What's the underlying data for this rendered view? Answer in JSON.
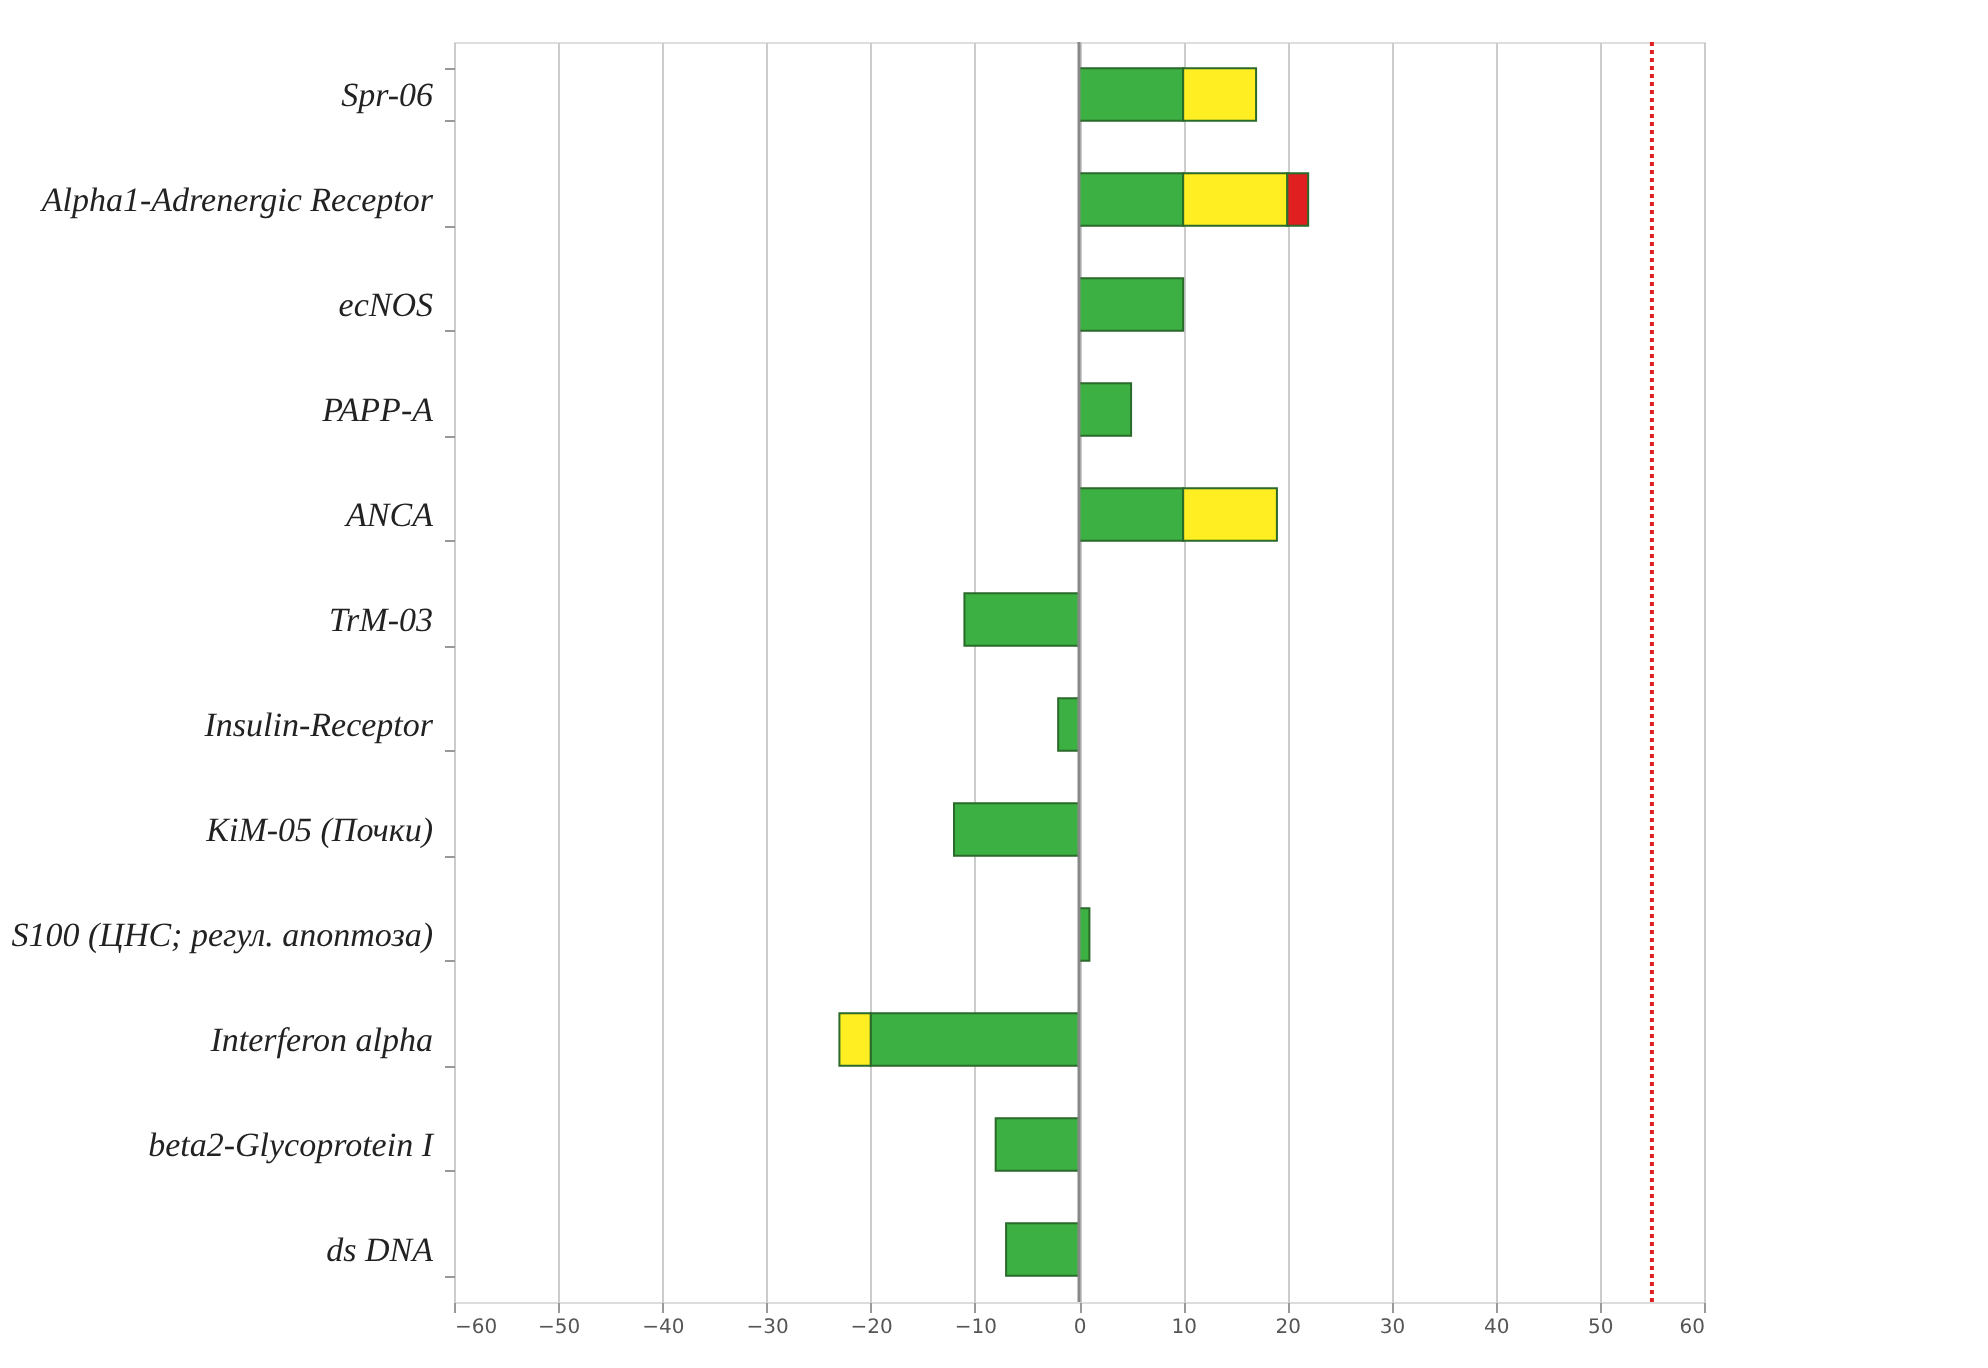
{
  "chart_data": {
    "type": "bar",
    "orientation": "horizontal",
    "stacked": true,
    "categories": [
      "Spr-06",
      "Alpha1-Adrenergic Receptor",
      "ecNOS",
      "PAPP-A",
      "ANCA",
      "TrM-03",
      "Insulin-Receptor",
      "KiM-05 (Почки)",
      "S100 (ЦНС; регул. апоптоза)",
      "Interferon alpha",
      "beta2-Glycoprotein I",
      "ds DNA"
    ],
    "series": [
      {
        "color": "#3cb043",
        "values": [
          10,
          10,
          10,
          5,
          10,
          -11,
          -2,
          -12,
          1,
          -20,
          -8,
          -7
        ]
      },
      {
        "color": "#ffee22",
        "values": [
          7,
          10,
          null,
          null,
          9,
          null,
          null,
          null,
          null,
          -3,
          null,
          null
        ]
      },
      {
        "color": "#e02020",
        "values": [
          null,
          2,
          null,
          null,
          null,
          null,
          null,
          null,
          null,
          null,
          null,
          null
        ]
      }
    ],
    "xlim": [
      -60,
      60
    ],
    "xticks": [
      -60,
      -50,
      -40,
      -30,
      -20,
      -10,
      0,
      10,
      20,
      30,
      40,
      50,
      60
    ],
    "ref_lines": [
      {
        "axis": "x",
        "value": 55,
        "color": "#e02020",
        "line_style": "dotted"
      }
    ],
    "grid": "x",
    "legend": false
  }
}
